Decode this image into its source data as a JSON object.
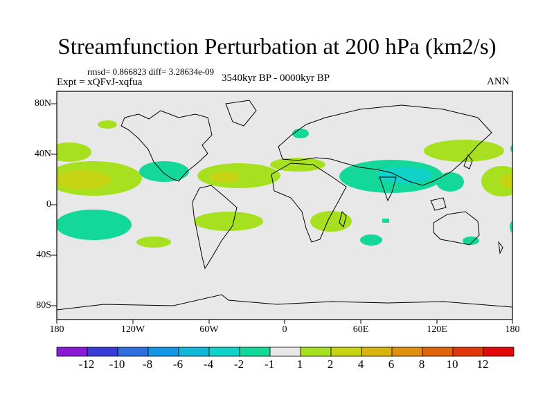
{
  "title": "Streamfunction Perturbation at 200 hPa (km2/s)",
  "stats": "rmsd= 0.866823 diff= 3.28634e-09",
  "experiment": "Expt = xQFvJ-xqfua",
  "period": "3540kyr BP - 0000kyr BP",
  "season": "ANN",
  "colors": {
    "background": "#e8e8e8",
    "coast": "#000000",
    "levels": [
      "#8a1ad6",
      "#3a3ad8",
      "#2e6fe0",
      "#1496e6",
      "#12b7d8",
      "#10d2c8",
      "#14d89a",
      "#e8e8e8",
      "#a6e01e",
      "#c6d414",
      "#dab40e",
      "#e0900c",
      "#e0640a",
      "#e0380a",
      "#e00a0a"
    ]
  },
  "axes": {
    "lat_ticks": [
      "80N",
      "40N",
      "0",
      "40S",
      "80S"
    ],
    "lon_ticks": [
      "180",
      "120W",
      "60W",
      "0",
      "60E",
      "120E",
      "180"
    ]
  },
  "colorbar": {
    "labels": [
      "-12",
      "-10",
      "-8",
      "-6",
      "-4",
      "-2",
      "-1",
      "1",
      "2",
      "4",
      "6",
      "8",
      "10",
      "12"
    ]
  }
}
